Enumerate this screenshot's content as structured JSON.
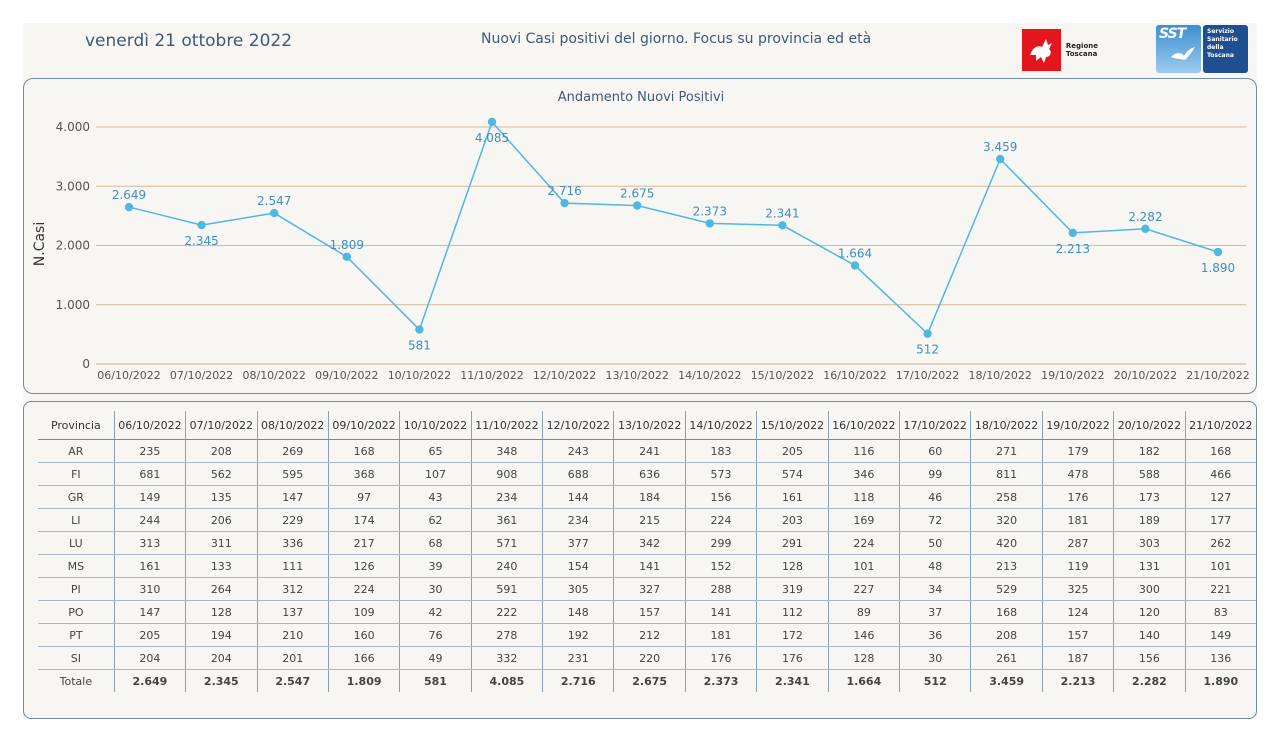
{
  "header": {
    "date": "venerdì 21 ottobre 2022",
    "title": "Nuovi Casi positivi del giorno. Focus su provincia ed età",
    "logo_regione": "Regione Toscana",
    "logo_sst_short": "SST",
    "logo_sst_lines": [
      "Servizio",
      "Sanitario",
      "della",
      "Toscana"
    ],
    "colors": {
      "brand_red": "#e3161d",
      "brand_blue": "#1f4e91"
    }
  },
  "chart_data": {
    "type": "line",
    "title": "Andamento Nuovi Positivi",
    "xlabel": "",
    "ylabel": "N.Casi",
    "ylim": [
      0,
      4000
    ],
    "yticks": [
      "0",
      "1.000",
      "2.000",
      "3.000",
      "4.000"
    ],
    "ytick_values": [
      0,
      1000,
      2000,
      3000,
      4000
    ],
    "grid": true,
    "line_color": "#4fb8e0",
    "label_color": "#3f8fbf",
    "categories": [
      "06/10/2022",
      "07/10/2022",
      "08/10/2022",
      "09/10/2022",
      "10/10/2022",
      "11/10/2022",
      "12/10/2022",
      "13/10/2022",
      "14/10/2022",
      "15/10/2022",
      "16/10/2022",
      "17/10/2022",
      "18/10/2022",
      "19/10/2022",
      "20/10/2022",
      "21/10/2022"
    ],
    "values": [
      2649,
      2345,
      2547,
      1809,
      581,
      4085,
      2716,
      2675,
      2373,
      2341,
      1664,
      512,
      3459,
      2213,
      2282,
      1890
    ],
    "value_labels": [
      "2.649",
      "2.345",
      "2.547",
      "1.809",
      "581",
      "4.085",
      "2.716",
      "2.675",
      "2.373",
      "2.341",
      "1.664",
      "512",
      "3.459",
      "2.213",
      "2.282",
      "1.890"
    ],
    "label_pos": [
      "above",
      "below",
      "above",
      "above",
      "below",
      "below",
      "above",
      "above",
      "above",
      "above",
      "above",
      "below",
      "above",
      "below",
      "above",
      "below"
    ]
  },
  "table": {
    "corner": "Provincia",
    "columns": [
      "06/10/2022",
      "07/10/2022",
      "08/10/2022",
      "09/10/2022",
      "10/10/2022",
      "11/10/2022",
      "12/10/2022",
      "13/10/2022",
      "14/10/2022",
      "15/10/2022",
      "16/10/2022",
      "17/10/2022",
      "18/10/2022",
      "19/10/2022",
      "20/10/2022",
      "21/10/2022"
    ],
    "rows": [
      {
        "name": "AR",
        "values": [
          235,
          208,
          269,
          168,
          65,
          348,
          243,
          241,
          183,
          205,
          116,
          60,
          271,
          179,
          182,
          168
        ]
      },
      {
        "name": "FI",
        "values": [
          681,
          562,
          595,
          368,
          107,
          908,
          688,
          636,
          573,
          574,
          346,
          99,
          811,
          478,
          588,
          466
        ]
      },
      {
        "name": "GR",
        "values": [
          149,
          135,
          147,
          97,
          43,
          234,
          144,
          184,
          156,
          161,
          118,
          46,
          258,
          176,
          173,
          127
        ]
      },
      {
        "name": "LI",
        "values": [
          244,
          206,
          229,
          174,
          62,
          361,
          234,
          215,
          224,
          203,
          169,
          72,
          320,
          181,
          189,
          177
        ]
      },
      {
        "name": "LU",
        "values": [
          313,
          311,
          336,
          217,
          68,
          571,
          377,
          342,
          299,
          291,
          224,
          50,
          420,
          287,
          303,
          262
        ]
      },
      {
        "name": "MS",
        "values": [
          161,
          133,
          111,
          126,
          39,
          240,
          154,
          141,
          152,
          128,
          101,
          48,
          213,
          119,
          131,
          101
        ]
      },
      {
        "name": "PI",
        "values": [
          310,
          264,
          312,
          224,
          30,
          591,
          305,
          327,
          288,
          319,
          227,
          34,
          529,
          325,
          300,
          221
        ]
      },
      {
        "name": "PO",
        "values": [
          147,
          128,
          137,
          109,
          42,
          222,
          148,
          157,
          141,
          112,
          89,
          37,
          168,
          124,
          120,
          83
        ]
      },
      {
        "name": "PT",
        "values": [
          205,
          194,
          210,
          160,
          76,
          278,
          192,
          212,
          181,
          172,
          146,
          36,
          208,
          157,
          140,
          149
        ]
      },
      {
        "name": "SI",
        "values": [
          204,
          204,
          201,
          166,
          49,
          332,
          231,
          220,
          176,
          176,
          128,
          30,
          261,
          187,
          156,
          136
        ]
      }
    ],
    "total": {
      "name": "Totale",
      "values": [
        "2.649",
        "2.345",
        "2.547",
        "1.809",
        "581",
        "4.085",
        "2.716",
        "2.675",
        "2.373",
        "2.341",
        "1.664",
        "512",
        "3.459",
        "2.213",
        "2.282",
        "1.890"
      ]
    }
  }
}
